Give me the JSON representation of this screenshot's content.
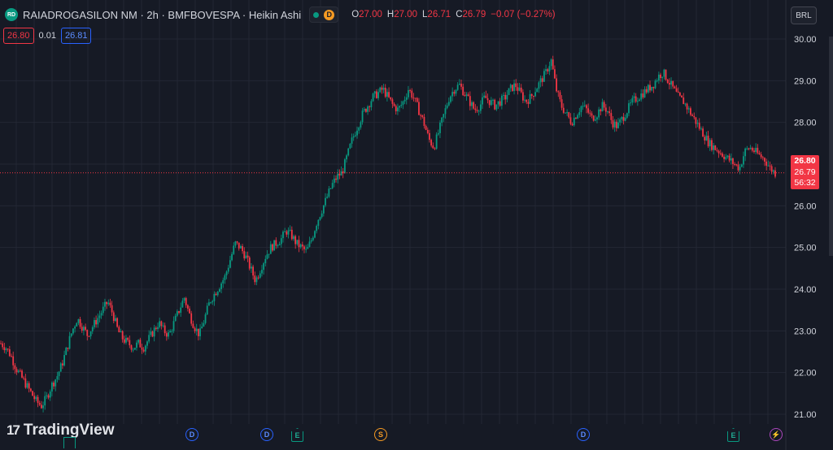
{
  "header": {
    "symbol_logo": "RD",
    "title": "RAIADROGASILON NM · 2h · BMFBOVESPA · Heikin Ashi",
    "delay_badge": "D",
    "ohlc": [
      {
        "label": "O",
        "value": "27.00"
      },
      {
        "label": "H",
        "value": "27.00"
      },
      {
        "label": "L",
        "value": "26.71"
      },
      {
        "label": "C",
        "value": "26.79"
      },
      {
        "label": "",
        "value": "−0.07 (−0.27%)"
      }
    ]
  },
  "trade": {
    "sell": "26.80",
    "spread": "0.01",
    "buy": "26.81"
  },
  "price_scale": {
    "currency": "BRL",
    "current_price_tag": "26.80",
    "last_price_tag": "26.79",
    "countdown": "56:32"
  },
  "branding": {
    "logo_text": "TradingView",
    "logo_icon": "tradingview-logo-icon"
  },
  "events": [
    {
      "type": "dividend",
      "label": "D"
    },
    {
      "type": "dividend",
      "label": "D"
    },
    {
      "type": "earnings",
      "label": "E"
    },
    {
      "type": "split",
      "label": "S"
    },
    {
      "type": "dividend",
      "label": "D"
    },
    {
      "type": "earnings",
      "label": "E"
    },
    {
      "type": "news",
      "label": "⚡"
    }
  ],
  "colors": {
    "background": "#161a25",
    "up": "#089981",
    "down": "#f23645",
    "grid": "#232734",
    "text": "#d1d4dc"
  },
  "chart_data": {
    "type": "candlestick",
    "title": "",
    "xlabel": "",
    "ylabel": "",
    "ylim": [
      20.75,
      30.25
    ],
    "yticks": [
      "30.00",
      "29.00",
      "28.00",
      "27.00",
      "26.00",
      "25.00",
      "24.00",
      "23.00",
      "22.00",
      "21.00"
    ],
    "current_price": 26.79,
    "series": [
      {
        "name": "",
        "values": [
          22.7,
          22.6,
          22.4,
          22.1,
          21.9,
          21.7,
          21.5,
          21.3,
          21.2,
          21.4,
          21.7,
          21.9,
          22.2,
          22.6,
          23.0,
          23.3,
          23.1,
          22.9,
          23.1,
          23.3,
          23.5,
          23.7,
          23.4,
          23.0,
          22.8,
          22.7,
          22.6,
          22.7,
          22.6,
          22.8,
          23.0,
          23.2,
          23.0,
          22.9,
          23.2,
          23.5,
          23.8,
          23.4,
          23.1,
          22.9,
          23.3,
          23.7,
          23.9,
          24.1,
          24.3,
          24.7,
          25.1,
          25.0,
          24.8,
          24.5,
          24.2,
          24.5,
          24.8,
          25.0,
          25.1,
          25.2,
          25.4,
          25.3,
          25.1,
          25.0,
          24.9,
          25.2,
          25.6,
          25.9,
          26.2,
          26.5,
          26.7,
          26.8,
          27.2,
          27.6,
          27.9,
          28.2,
          28.4,
          28.6,
          28.7,
          28.8,
          28.6,
          28.4,
          28.3,
          28.5,
          28.8,
          28.6,
          28.3,
          28.0,
          27.6,
          27.4,
          27.8,
          28.2,
          28.6,
          28.8,
          28.9,
          28.7,
          28.5,
          28.3,
          28.4,
          28.6,
          28.5,
          28.4,
          28.5,
          28.6,
          28.8,
          28.9,
          28.7,
          28.5,
          28.6,
          28.8,
          29.0,
          29.2,
          29.5,
          28.8,
          28.4,
          28.2,
          28.0,
          28.2,
          28.4,
          28.3,
          28.1,
          28.2,
          28.4,
          28.3,
          28.0,
          27.9,
          28.1,
          28.3,
          28.5,
          28.6,
          28.7,
          28.8,
          28.9,
          29.1,
          29.2,
          29.0,
          28.8,
          28.6,
          28.5,
          28.3,
          28.1,
          27.9,
          27.7,
          27.5,
          27.4,
          27.3,
          27.2,
          27.1,
          27.0,
          26.9,
          27.3,
          27.4,
          27.3,
          27.2,
          27.1,
          26.9,
          26.79
        ]
      }
    ]
  }
}
